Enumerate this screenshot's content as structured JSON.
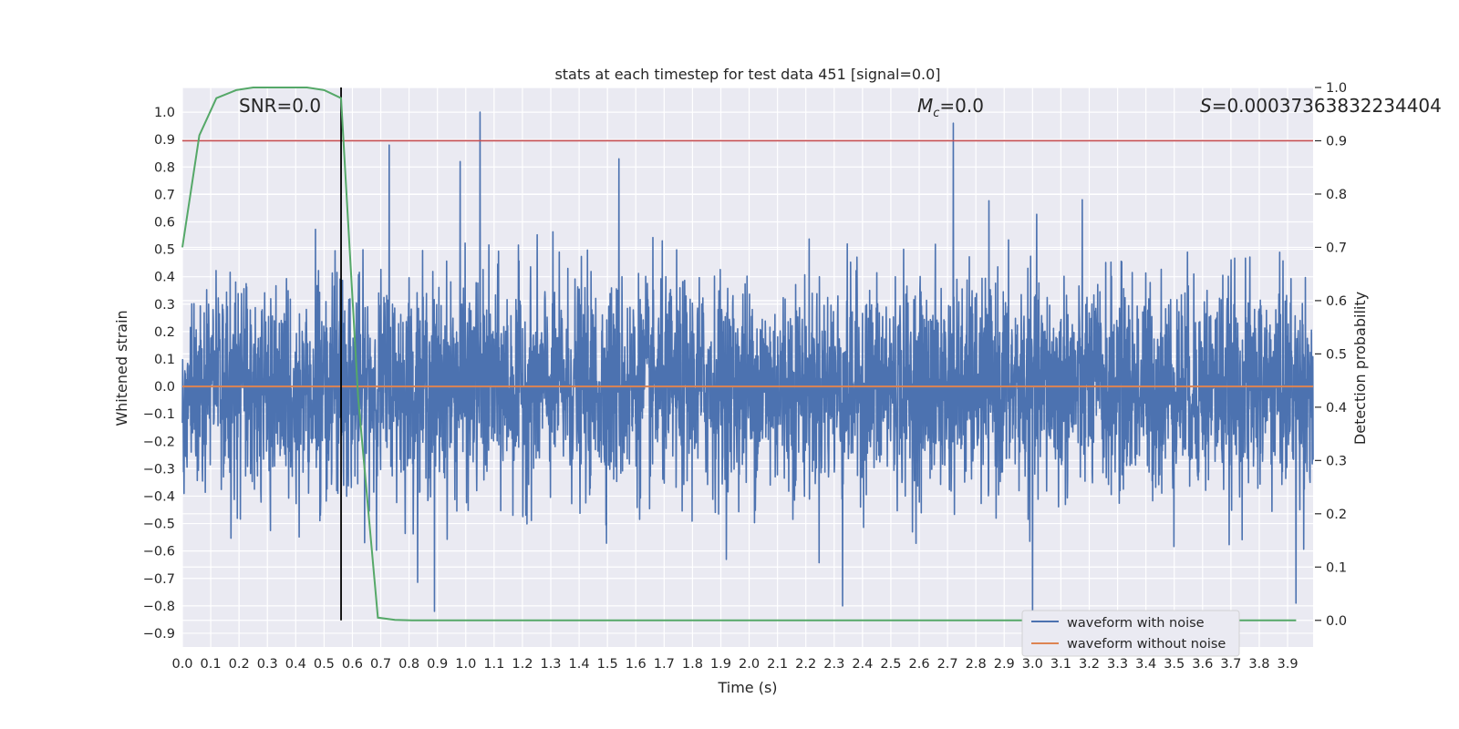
{
  "chart_data": {
    "type": "line",
    "title": "stats at each timestep for test data 451 [signal=0.0]",
    "xlabel": "Time (s)",
    "ylabel": "Whitened strain",
    "ylabel_right": "Detection probability",
    "xlim": [
      0.0,
      3.99
    ],
    "ylim": [
      -0.95,
      1.09
    ],
    "ylim_right": [
      -0.05,
      1.0
    ],
    "x_ticks": [
      "0.0",
      "0.1",
      "0.2",
      "0.3",
      "0.4",
      "0.5",
      "0.6",
      "0.7",
      "0.8",
      "0.9",
      "1.0",
      "1.1",
      "1.2",
      "1.3",
      "1.4",
      "1.5",
      "1.6",
      "1.7",
      "1.8",
      "1.9",
      "2.0",
      "2.1",
      "2.2",
      "2.3",
      "2.4",
      "2.5",
      "2.6",
      "2.7",
      "2.8",
      "2.9",
      "3.0",
      "3.1",
      "3.2",
      "3.3",
      "3.4",
      "3.5",
      "3.6",
      "3.7",
      "3.8",
      "3.9"
    ],
    "y_ticks": [
      "1.0",
      "0.9",
      "0.8",
      "0.7",
      "0.6",
      "0.5",
      "0.4",
      "0.3",
      "0.2",
      "0.1",
      "0.0",
      "−0.1",
      "−0.2",
      "−0.3",
      "−0.4",
      "−0.5",
      "−0.6",
      "−0.7",
      "−0.8",
      "−0.9"
    ],
    "y_tick_values": [
      1.0,
      0.9,
      0.8,
      0.7,
      0.6,
      0.5,
      0.4,
      0.3,
      0.2,
      0.1,
      0.0,
      -0.1,
      -0.2,
      -0.3,
      -0.4,
      -0.5,
      -0.6,
      -0.7,
      -0.8,
      -0.9
    ],
    "y2_ticks": [
      "1.0",
      "0.9",
      "0.8",
      "0.7",
      "0.6",
      "0.5",
      "0.4",
      "0.3",
      "0.2",
      "0.1",
      "0.0"
    ],
    "y2_tick_values": [
      1.0,
      0.9,
      0.8,
      0.7,
      0.6,
      0.5,
      0.4,
      0.3,
      0.2,
      0.1,
      0.0
    ],
    "annotations": {
      "snr": "SNR=0.0",
      "mc_symbol": "M",
      "mc_sub": "c",
      "mc_value": "=0.0",
      "s_symbol": "S",
      "s_value": "=0.00037363832234404"
    },
    "threshold_right": 0.9,
    "marker_time": 0.56,
    "series": [
      {
        "name": "waveform with noise",
        "color": "#4c72b0",
        "axis": "left",
        "kind": "noise",
        "n_samples": 4096,
        "std": 0.19,
        "noted_peaks": [
          {
            "x": 1.05,
            "y": 1.0
          },
          {
            "x": 2.72,
            "y": 0.96
          },
          {
            "x": 0.73,
            "y": 0.88
          },
          {
            "x": 1.54,
            "y": 0.83
          },
          {
            "x": 0.98,
            "y": 0.82
          },
          {
            "x": 0.89,
            "y": -0.82
          },
          {
            "x": 3.0,
            "y": -0.9
          },
          {
            "x": 3.93,
            "y": -0.79
          },
          {
            "x": 2.33,
            "y": -0.8
          }
        ]
      },
      {
        "name": "waveform without noise",
        "color": "#dd8452",
        "axis": "left",
        "x": [
          0.0,
          3.99
        ],
        "y": [
          0.0,
          0.0
        ]
      },
      {
        "name": "detection probability",
        "color": "#55a868",
        "axis": "right",
        "x": [
          0.0,
          0.06,
          0.12,
          0.19,
          0.25,
          0.31,
          0.37,
          0.44,
          0.5,
          0.56,
          0.62,
          0.69,
          0.75,
          0.81,
          3.93
        ],
        "y": [
          0.7,
          0.91,
          0.98,
          0.995,
          1.0,
          1.0,
          1.0,
          1.0,
          0.995,
          0.98,
          0.42,
          0.005,
          0.001,
          0.0,
          0.0
        ]
      }
    ],
    "legend": {
      "placement": "lower-right",
      "entries": [
        {
          "label": "waveform with noise",
          "color": "#4c72b0"
        },
        {
          "label": "waveform without noise",
          "color": "#dd8452"
        }
      ]
    },
    "colors": {
      "background": "#eaeaf2",
      "grid": "#ffffff",
      "threshold": "#c44e52",
      "marker": "#000000"
    }
  }
}
